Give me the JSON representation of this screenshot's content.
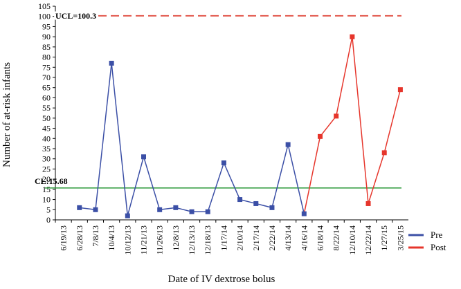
{
  "chart_data": {
    "type": "line",
    "x_label": "Date of IV dextrose bolus",
    "y_label": "Number of at-risk infants",
    "categories": [
      "6/19/13",
      "6/28/13",
      "7/8/13",
      "10/4/13",
      "10/12/13",
      "11/21/13",
      "11/26/13",
      "12/8/13",
      "12/13/13",
      "12/18/13",
      "1/17/14",
      "2/10/14",
      "2/17/14",
      "2/22/14",
      "4/13/14",
      "4/16/14",
      "6/18/14",
      "8/22/14",
      "12/10/14",
      "12/22/14",
      "1/27/15",
      "3/25/15"
    ],
    "series": [
      {
        "name": "Pre",
        "color": "#3b4fa6",
        "values": [
          null,
          6,
          5,
          77,
          2,
          31,
          5,
          6,
          4,
          4,
          28,
          10,
          8,
          6,
          37,
          3,
          null,
          null,
          null,
          null,
          null,
          null
        ]
      },
      {
        "name": "Post",
        "color": "#e6352b",
        "values": [
          null,
          null,
          null,
          null,
          null,
          null,
          null,
          null,
          null,
          null,
          null,
          null,
          null,
          null,
          null,
          null,
          41,
          51,
          90,
          8,
          33,
          64
        ]
      }
    ],
    "control_limits": [
      {
        "label": "UCL=100.3",
        "value": 100.3,
        "color": "#e2574c",
        "dashed": true
      },
      {
        "label": "CL:15.68",
        "value": 15.68,
        "color": "#2e9a3c",
        "dashed": false
      }
    ],
    "ylim": [
      0,
      105
    ],
    "yticks": [
      0,
      5,
      10,
      15,
      20,
      25,
      30,
      35,
      40,
      45,
      50,
      55,
      60,
      65,
      70,
      75,
      80,
      85,
      90,
      95,
      100,
      105
    ],
    "legend": "bottom-right",
    "markers": "square"
  }
}
